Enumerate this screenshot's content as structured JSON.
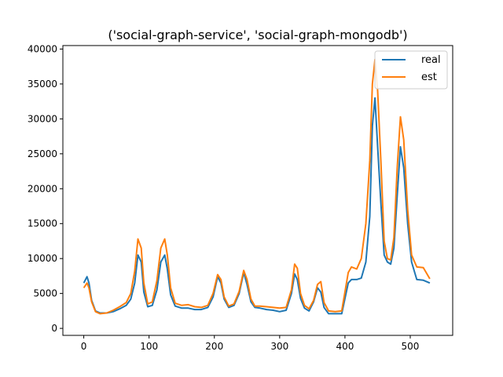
{
  "chart_data": {
    "type": "line",
    "title": "('social-graph-service', 'social-graph-mongodb')",
    "xlabel": "",
    "ylabel": "",
    "xlim": [
      -32,
      565
    ],
    "ylim": [
      -1000,
      40500
    ],
    "xticks": [
      0,
      100,
      200,
      300,
      400,
      500
    ],
    "yticks": [
      0,
      5000,
      10000,
      15000,
      20000,
      25000,
      30000,
      35000,
      40000
    ],
    "grid": false,
    "legend": "top-right",
    "series": [
      {
        "name": "real",
        "color": "#1f77b4",
        "x": [
          0,
          5,
          8,
          12,
          18,
          25,
          35,
          45,
          55,
          65,
          72,
          78,
          83,
          88,
          92,
          98,
          105,
          112,
          118,
          124,
          128,
          133,
          140,
          150,
          160,
          170,
          180,
          190,
          198,
          205,
          210,
          215,
          222,
          230,
          238,
          245,
          250,
          256,
          262,
          270,
          280,
          290,
          300,
          310,
          318,
          323,
          327,
          332,
          338,
          345,
          352,
          358,
          363,
          368,
          375,
          385,
          395,
          405,
          410,
          418,
          425,
          432,
          438,
          442,
          446,
          450,
          455,
          460,
          465,
          470,
          475,
          480,
          485,
          490,
          496,
          502,
          510,
          520,
          530
        ],
        "y": [
          6500,
          7400,
          6500,
          4000,
          2500,
          2200,
          2200,
          2400,
          2800,
          3300,
          4200,
          6500,
          10500,
          9500,
          5200,
          3100,
          3300,
          5500,
          9500,
          10500,
          8500,
          4800,
          3200,
          2900,
          2900,
          2700,
          2700,
          3000,
          4500,
          7400,
          6500,
          4200,
          3000,
          3300,
          5000,
          8000,
          6300,
          3800,
          3000,
          2900,
          2700,
          2600,
          2400,
          2600,
          5000,
          7800,
          7000,
          4300,
          2900,
          2500,
          3800,
          5800,
          5200,
          3000,
          2100,
          2100,
          2100,
          6500,
          7000,
          7000,
          7200,
          9500,
          16000,
          29000,
          33000,
          26000,
          18000,
          10500,
          9500,
          9200,
          11500,
          19000,
          26000,
          23000,
          15000,
          9500,
          7000,
          6900,
          6500
        ]
      },
      {
        "name": "est",
        "color": "#ff7f0e",
        "x": [
          0,
          5,
          8,
          12,
          18,
          25,
          35,
          45,
          55,
          65,
          72,
          78,
          83,
          88,
          92,
          98,
          105,
          112,
          118,
          124,
          128,
          133,
          140,
          150,
          160,
          170,
          180,
          190,
          198,
          205,
          210,
          215,
          222,
          230,
          238,
          245,
          250,
          256,
          262,
          270,
          280,
          290,
          300,
          310,
          318,
          323,
          327,
          332,
          338,
          345,
          352,
          358,
          363,
          368,
          375,
          385,
          395,
          405,
          410,
          418,
          425,
          432,
          438,
          442,
          446,
          450,
          455,
          460,
          465,
          470,
          475,
          480,
          485,
          490,
          496,
          502,
          510,
          520,
          530
        ],
        "y": [
          5800,
          6500,
          5800,
          3800,
          2400,
          2100,
          2200,
          2600,
          3100,
          3700,
          5000,
          8200,
          12800,
          11500,
          6500,
          3500,
          3800,
          6800,
          11500,
          12800,
          10500,
          5800,
          3600,
          3300,
          3400,
          3100,
          3000,
          3300,
          5000,
          7700,
          7000,
          4500,
          3200,
          3500,
          5300,
          8300,
          7000,
          4200,
          3200,
          3200,
          3100,
          3000,
          2900,
          3000,
          5500,
          9200,
          8600,
          5000,
          3300,
          2800,
          4000,
          6300,
          6700,
          3700,
          2500,
          2400,
          2500,
          8000,
          8800,
          8500,
          10000,
          15000,
          24000,
          35000,
          38500,
          34000,
          24000,
          12500,
          10000,
          9800,
          13000,
          23000,
          30300,
          27000,
          17000,
          10500,
          8800,
          8700,
          7100
        ]
      }
    ]
  }
}
